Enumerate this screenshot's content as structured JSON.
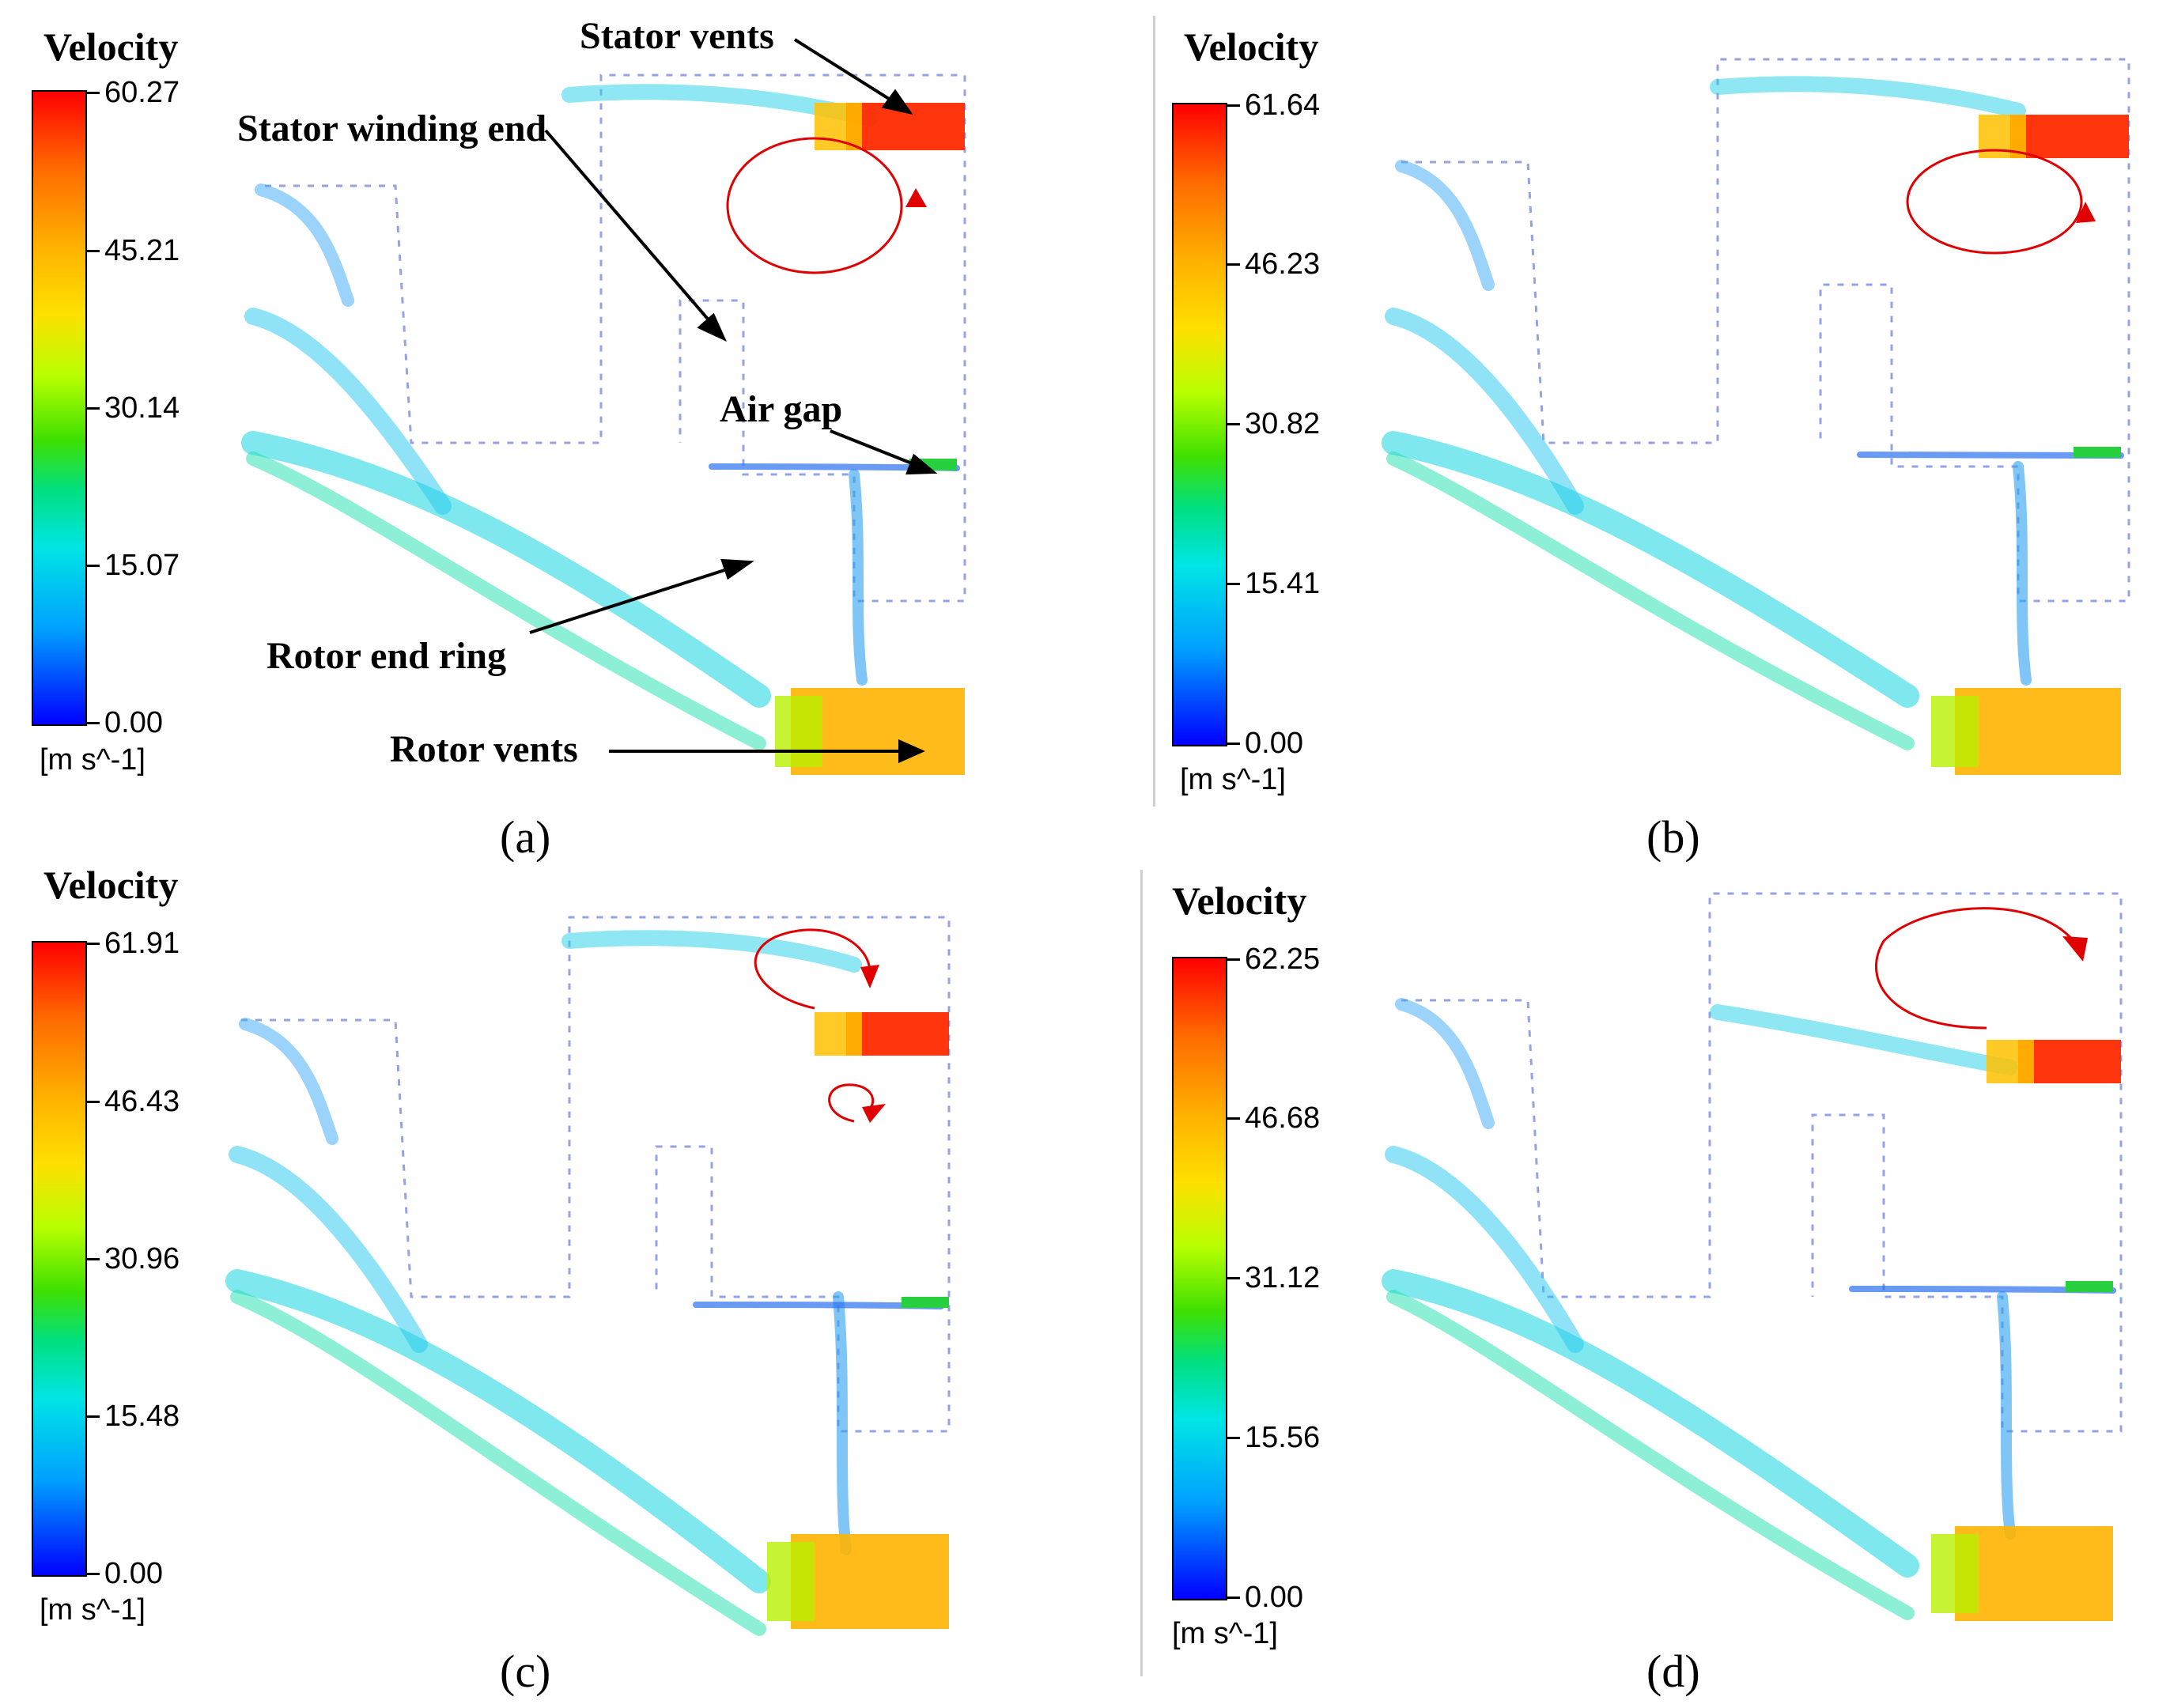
{
  "panels": [
    {
      "legend_title": "Velocity",
      "max": "60.27",
      "ticks": [
        "60.27",
        "45.21",
        "30.14",
        "15.07",
        "0.00"
      ],
      "unit": "[m s^-1]",
      "label": "(a)"
    },
    {
      "legend_title": "Velocity",
      "max": "61.64",
      "ticks": [
        "61.64",
        "46.23",
        "30.82",
        "15.41",
        "0.00"
      ],
      "unit": "[m s^-1]",
      "label": "(b)"
    },
    {
      "legend_title": "Velocity",
      "max": "61.91",
      "ticks": [
        "61.91",
        "46.43",
        "30.96",
        "15.48",
        "0.00"
      ],
      "unit": "[m s^-1]",
      "label": "(c)"
    },
    {
      "legend_title": "Velocity",
      "max": "62.25",
      "ticks": [
        "62.25",
        "46.68",
        "31.12",
        "15.56",
        "0.00"
      ],
      "unit": "[m s^-1]",
      "label": "(d)"
    }
  ],
  "annotations": {
    "stator_vents": "Stator vents",
    "stator_winding_end": "Stator winding end",
    "air_gap": "Air gap",
    "rotor_end_ring": "Rotor end ring",
    "rotor_vents": "Rotor vents"
  },
  "colors": {
    "vortex": "#e00000",
    "arrow": "#000000",
    "high": "#ff0000",
    "mid": "#ffc000",
    "low": "#00e5e5",
    "min": "#0000ff"
  }
}
